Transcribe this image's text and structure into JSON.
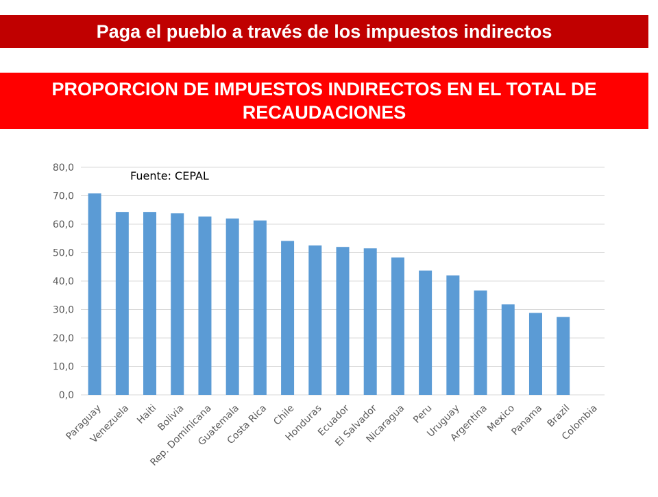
{
  "header": {
    "title": "Paga el pueblo a través de los impuestos indirectos",
    "subtitle": "PROPORCION DE IMPUESTOS INDIRECTOS EN EL TOTAL DE RECAUDACIONES"
  },
  "colors": {
    "title_bar": "#c00000",
    "subtitle_bar": "#ff0000",
    "bar": "#5b9bd5",
    "grid": "#d9d9d9"
  },
  "chart_data": {
    "type": "bar",
    "annotation": "Fuente: CEPAL",
    "categories": [
      "Paraguay",
      "Venezuela",
      "Haiti",
      "Bolivia",
      "Rep. Dominicana",
      "Guatemala",
      "Costa Rica",
      "Chile",
      "Honduras",
      "Ecuador",
      "El Salvador",
      "Nicaragua",
      "Peru",
      "Uruguay",
      "Argentina",
      "Mexico",
      "Panama",
      "Brazil",
      "Colombia"
    ],
    "values": [
      70.8,
      64.3,
      64.3,
      63.8,
      62.7,
      62.0,
      61.3,
      54.1,
      52.5,
      52.0,
      51.5,
      48.3,
      43.7,
      42.0,
      36.7,
      31.8,
      28.8,
      27.4,
      null
    ],
    "yticks": [
      "0,0",
      "10,0",
      "20,0",
      "30,0",
      "40,0",
      "50,0",
      "60,0",
      "70,0",
      "80,0"
    ],
    "ylim": [
      0,
      80
    ],
    "grid": true,
    "legend": "none",
    "title": "",
    "xlabel": "",
    "ylabel": ""
  }
}
